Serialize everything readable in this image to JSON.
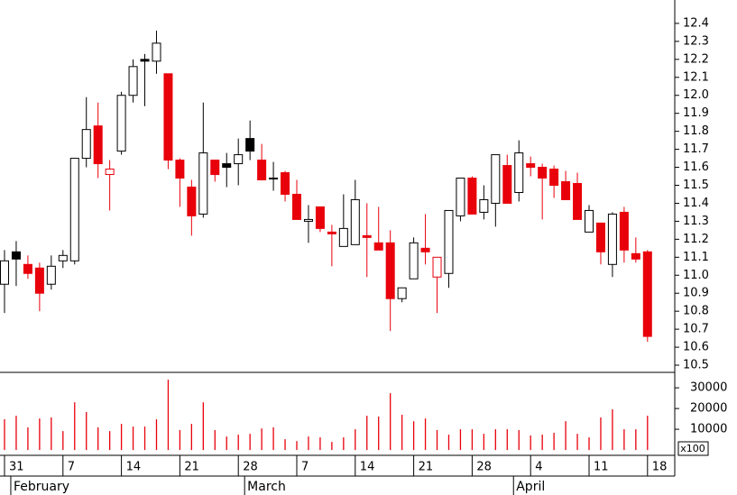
{
  "chart_data": [
    {
      "type": "candlestick",
      "open": [
        10.95,
        11.13,
        11.06,
        11.04,
        10.95,
        11.08,
        11.08,
        11.65,
        11.83,
        11.56,
        11.69,
        12.0,
        12.2,
        12.19,
        12.12,
        11.64,
        11.49,
        11.34,
        11.64,
        11.62,
        11.62,
        11.76,
        11.64,
        11.54,
        11.57,
        11.45,
        11.3,
        11.38,
        11.24,
        11.16,
        11.17,
        11.22,
        11.18,
        11.18,
        10.87,
        10.98,
        11.15,
        10.99,
        11.01,
        11.33,
        11.54,
        11.35,
        11.4,
        11.61,
        11.46,
        11.62,
        11.6,
        11.59,
        11.52,
        11.51,
        11.24,
        11.29,
        11.06,
        11.35,
        11.12,
        11.13
      ],
      "high": [
        11.14,
        11.19,
        11.11,
        11.07,
        11.11,
        11.14,
        11.65,
        11.99,
        11.96,
        11.64,
        12.02,
        12.2,
        12.23,
        12.36,
        12.12,
        11.65,
        11.53,
        11.96,
        11.64,
        11.68,
        11.76,
        11.86,
        11.73,
        11.63,
        11.58,
        11.53,
        11.39,
        11.38,
        11.28,
        11.45,
        11.53,
        11.4,
        11.38,
        11.25,
        10.93,
        11.21,
        11.34,
        11.1,
        11.36,
        11.54,
        11.55,
        11.5,
        11.67,
        11.67,
        11.75,
        11.66,
        11.62,
        11.61,
        11.58,
        11.57,
        11.39,
        11.29,
        11.35,
        11.38,
        11.21,
        11.14
      ],
      "low": [
        10.79,
        10.94,
        10.98,
        10.8,
        10.92,
        11.04,
        11.06,
        11.6,
        11.54,
        11.36,
        11.67,
        11.96,
        11.94,
        12.12,
        11.59,
        11.38,
        11.22,
        11.32,
        11.52,
        11.49,
        11.5,
        11.64,
        11.53,
        11.47,
        11.41,
        11.31,
        11.18,
        11.24,
        11.05,
        11.16,
        11.17,
        10.99,
        11.14,
        10.69,
        10.85,
        10.98,
        11.06,
        10.79,
        10.93,
        11.3,
        11.34,
        11.31,
        11.27,
        11.4,
        11.41,
        11.55,
        11.31,
        11.43,
        11.42,
        11.31,
        11.24,
        11.06,
        10.99,
        11.07,
        11.07,
        10.63
      ],
      "close": [
        11.08,
        11.09,
        11.01,
        10.9,
        11.05,
        11.11,
        11.65,
        11.81,
        11.62,
        11.59,
        12.0,
        12.16,
        12.19,
        12.29,
        11.64,
        11.54,
        11.33,
        11.68,
        11.56,
        11.6,
        11.67,
        11.69,
        11.53,
        11.54,
        11.45,
        11.31,
        11.31,
        11.26,
        11.23,
        11.26,
        11.42,
        11.21,
        11.14,
        10.87,
        10.93,
        11.18,
        11.13,
        11.1,
        11.36,
        11.54,
        11.34,
        11.42,
        11.67,
        11.4,
        11.68,
        11.6,
        11.54,
        11.5,
        11.42,
        11.31,
        11.36,
        11.13,
        11.34,
        11.14,
        11.09,
        10.66
      ],
      "styles": [
        "up",
        "black",
        "down",
        "down",
        "up",
        "up",
        "up",
        "up",
        "down",
        "up-red",
        "up",
        "up",
        "black",
        "up",
        "down",
        "down",
        "down",
        "up",
        "down",
        "black",
        "up",
        "black",
        "down",
        "black",
        "down",
        "down",
        "up",
        "down",
        "down",
        "up",
        "up",
        "down",
        "down",
        "down",
        "up",
        "up",
        "down",
        "up-red",
        "up",
        "up",
        "down",
        "up",
        "up",
        "down",
        "up",
        "down",
        "down",
        "down",
        "down",
        "down",
        "up",
        "down",
        "up",
        "down",
        "down",
        "down"
      ],
      "palette": {
        "up": {
          "fill": "#ffffff",
          "stroke": "#000000"
        },
        "down": {
          "fill": "#e8000b",
          "stroke": "#e8000b"
        },
        "black": {
          "fill": "#000000",
          "stroke": "#000000"
        },
        "up-red": {
          "fill": "#ffffff",
          "stroke": "#e8000b"
        }
      },
      "ylim": [
        10.46,
        12.53
      ],
      "yticks": [
        10.5,
        10.6,
        10.7,
        10.8,
        10.9,
        {
          "value": 11.0,
          "label": "11.0"
        },
        11.1,
        11.2,
        11.3,
        11.4,
        11.5,
        11.6,
        11.7,
        11.8,
        11.9,
        {
          "value": 12.0,
          "label": "12.0"
        },
        12.1,
        12.2,
        12.3,
        12.4
      ]
    },
    {
      "type": "bar",
      "categories": [
        "31",
        null,
        null,
        null,
        null,
        "7",
        null,
        null,
        null,
        null,
        "14",
        null,
        null,
        null,
        null,
        "21",
        null,
        null,
        null,
        null,
        "28",
        null,
        null,
        null,
        null,
        "7",
        null,
        null,
        null,
        null,
        "14",
        null,
        null,
        null,
        null,
        "21",
        null,
        null,
        null,
        null,
        "28",
        null,
        null,
        null,
        null,
        "4",
        null,
        null,
        null,
        null,
        "11",
        null,
        null,
        null,
        null,
        "18"
      ],
      "months": [
        null,
        "February",
        null,
        null,
        null,
        null,
        null,
        null,
        null,
        null,
        null,
        null,
        null,
        null,
        null,
        null,
        null,
        null,
        null,
        null,
        null,
        "March",
        null,
        null,
        null,
        null,
        null,
        null,
        null,
        null,
        null,
        null,
        null,
        null,
        null,
        null,
        null,
        null,
        null,
        null,
        null,
        null,
        null,
        null,
        "April",
        null,
        null,
        null,
        null,
        null,
        null,
        null,
        null,
        null,
        null,
        null
      ],
      "values": [
        14800,
        16500,
        10900,
        15200,
        15700,
        9100,
        23000,
        18300,
        10900,
        9100,
        12600,
        11300,
        11300,
        14800,
        33900,
        9600,
        12600,
        23000,
        9600,
        6500,
        7400,
        7800,
        10400,
        10900,
        5200,
        4300,
        6500,
        6100,
        3900,
        6100,
        10000,
        16500,
        16100,
        27400,
        17000,
        13900,
        15200,
        9600,
        7400,
        10000,
        10000,
        7800,
        10000,
        10000,
        9600,
        7000,
        7400,
        8300,
        13900,
        7800,
        6100,
        15700,
        19600,
        10000,
        10000,
        16500
      ],
      "color": "#e8000b",
      "volume_unit": "x100",
      "ylim": [
        -1700,
        37000
      ],
      "yticks": [
        10000,
        20000,
        30000
      ]
    }
  ]
}
